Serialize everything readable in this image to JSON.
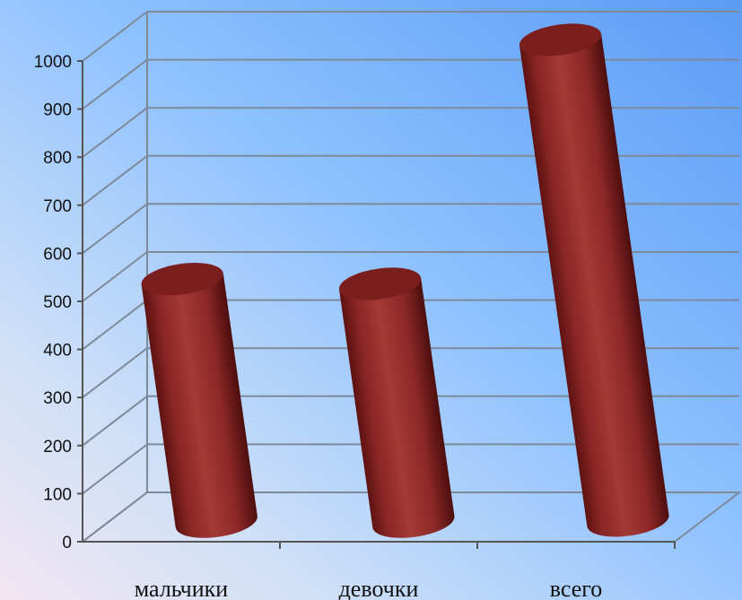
{
  "chart_data": {
    "type": "bar",
    "categories": [
      "мальчики",
      "девочки",
      "всего"
    ],
    "values": [
      510,
      500,
      1010
    ],
    "ylim": [
      0,
      1000
    ],
    "yticks": [
      0,
      100,
      200,
      300,
      400,
      500,
      600,
      700,
      800,
      900,
      1000
    ],
    "grid": true,
    "legend": "none",
    "bar_style": "3d-cylinder",
    "colors": {
      "bar": "#9b3030",
      "bar_dark": "#5e1212",
      "bar_top": "#7a1e1e",
      "grid": "#7d8a99"
    }
  }
}
